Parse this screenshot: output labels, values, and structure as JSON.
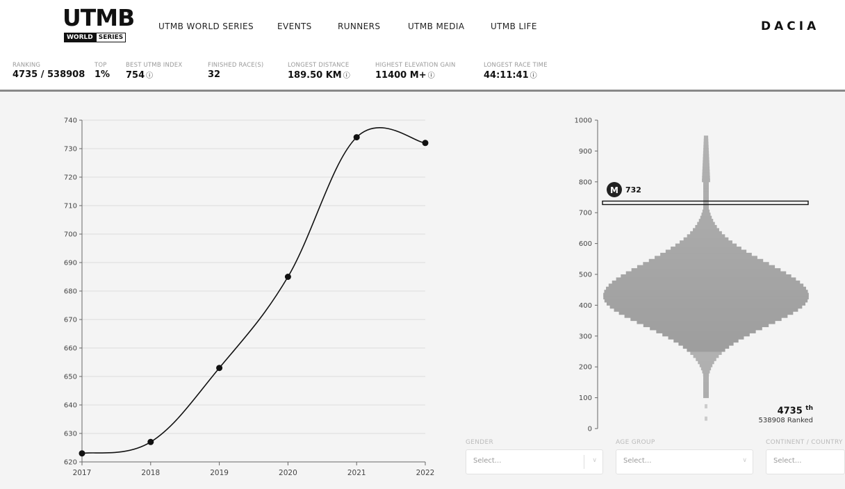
{
  "header": {
    "logo_main": "UTMB",
    "logo_reg": "®",
    "logo_world": "WORLD",
    "logo_series": "SERIES",
    "nav": [
      "UTMB WORLD SERIES",
      "EVENTS",
      "RUNNERS",
      "UTMB MEDIA",
      "UTMB LIFE"
    ],
    "brand": "DACIA"
  },
  "stats": [
    {
      "label": "RANKING",
      "value": "4735 / 538908",
      "info": ""
    },
    {
      "label": "TOP",
      "value": "1%",
      "info": ""
    },
    {
      "label": "BEST UTMB INDEX",
      "value": "754",
      "info": "ⓘ"
    },
    {
      "label": "FINISHED RACE(S)",
      "value": "32",
      "info": ""
    },
    {
      "label": "LONGEST DISTANCE",
      "value": "189.50 KM",
      "info": "ⓘ"
    },
    {
      "label": "HIGHEST ELEVATION GAIN",
      "value": "11400 M+",
      "info": "ⓘ"
    },
    {
      "label": "LONGEST RACE TIME",
      "value": "44:11:41",
      "info": "ⓘ"
    }
  ],
  "chart_data": [
    {
      "type": "line",
      "x": [
        "2017",
        "2018",
        "2019",
        "2020",
        "2021",
        "2022"
      ],
      "series": [
        {
          "values": [
            623,
            627,
            653,
            685,
            734,
            732
          ]
        }
      ],
      "ylim": [
        620,
        740
      ],
      "yticks": [
        620,
        630,
        640,
        650,
        660,
        670,
        680,
        690,
        700,
        710,
        720,
        730,
        740
      ],
      "grid": true
    },
    {
      "type": "area",
      "ylim": [
        0,
        1000
      ],
      "yticks": [
        0,
        100,
        200,
        300,
        400,
        500,
        600,
        700,
        800,
        900,
        1000
      ],
      "marker_value": "732",
      "marker_icon": "M"
    }
  ],
  "rank": {
    "position": "4735",
    "suffix": "th",
    "total": "538908 Ranked"
  },
  "filters": [
    {
      "label": "GENDER",
      "value": "Select..."
    },
    {
      "label": "AGE GROUP",
      "value": "Select..."
    },
    {
      "label": "CONTINENT / COUNTRY",
      "value": "Select..."
    }
  ],
  "colors": {
    "line": "#111111",
    "grid": "#dddddd",
    "dist": "#a8a8a8",
    "bg": "#f4f4f4"
  }
}
